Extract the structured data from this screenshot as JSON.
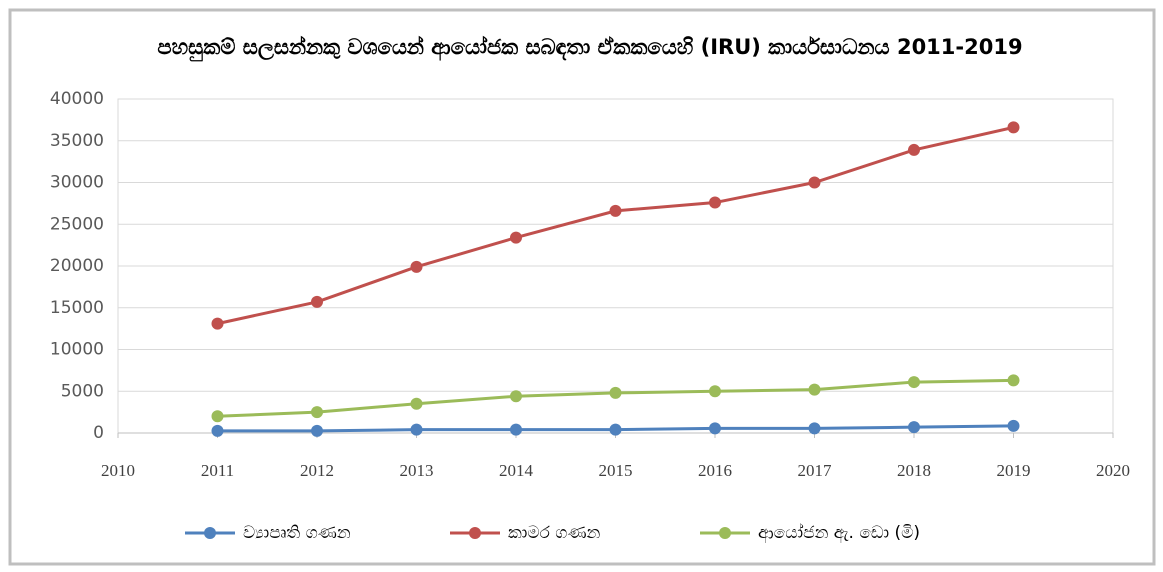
{
  "chart_data": {
    "type": "line",
    "title": "පහසුකම් සලසන්නකු වශයෙන් ආයෝජක සබඳතා ඒකකයෙහි (IRU) කාර්යසාධනය 2011-2019",
    "x": [
      2011,
      2012,
      2013,
      2014,
      2015,
      2016,
      2017,
      2018,
      2019
    ],
    "series": [
      {
        "name": "ව්‍යාපෘති ගණන",
        "color": "#4f81bd",
        "values": [
          250,
          250,
          400,
          400,
          400,
          550,
          550,
          700,
          850
        ]
      },
      {
        "name": "කාමර ගණන",
        "color": "#c0504d",
        "values": [
          13100,
          15700,
          19900,
          23400,
          26600,
          27600,
          30000,
          33900,
          36600
        ]
      },
      {
        "name": "ආයෝජන ඇ. ඩො (මි)",
        "color": "#9bbb59",
        "values": [
          2000,
          2500,
          3500,
          4400,
          4800,
          5000,
          5200,
          6100,
          6300
        ]
      }
    ],
    "xlim": [
      2010,
      2020
    ],
    "xticks": [
      2010,
      2011,
      2012,
      2013,
      2014,
      2015,
      2016,
      2017,
      2018,
      2019,
      2020
    ],
    "ylim": [
      0,
      40000
    ],
    "yticks": [
      0,
      5000,
      10000,
      15000,
      20000,
      25000,
      30000,
      35000,
      40000
    ],
    "grid": true,
    "legend": "bottom"
  }
}
